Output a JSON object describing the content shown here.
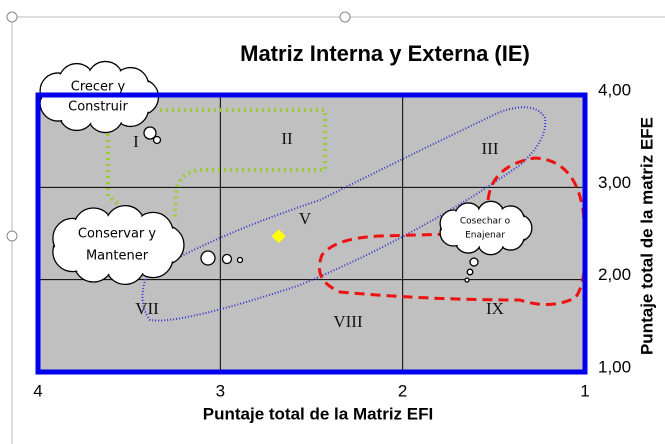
{
  "chart_data": {
    "type": "scatter",
    "title": "Matriz Interna y Externa (IE)",
    "x_label": "Puntaje total de la Matriz EFI",
    "y_label": "Puntaje total de la matriz EFE",
    "x": [
      2.68
    ],
    "values": [
      2.47
    ],
    "color": "#ffff00",
    "xlim": [
      4,
      1
    ],
    "xticks": [
      4,
      3,
      2,
      1
    ],
    "ylim": [
      1,
      4
    ],
    "yticks": [
      {
        "value": 1,
        "label": "1,00"
      },
      {
        "value": 2,
        "label": "2,00"
      },
      {
        "value": 3,
        "label": "3,00"
      },
      {
        "value": 4,
        "label": "4,00"
      }
    ],
    "grid": true,
    "annotations": {
      "regions": [
        "I",
        "II",
        "III",
        "V",
        "VII",
        "VIII",
        "IX"
      ],
      "clouds": [
        [
          "Crecer y",
          "Construir"
        ],
        [
          "Conservar y",
          "Mantener"
        ],
        [
          "Cosechar o",
          "Enajenar"
        ]
      ]
    }
  }
}
